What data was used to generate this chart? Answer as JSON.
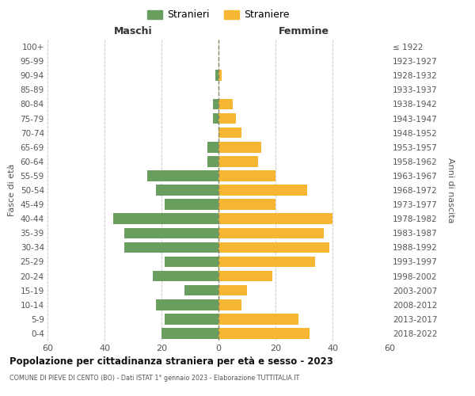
{
  "age_groups_bottom_to_top": [
    "0-4",
    "5-9",
    "10-14",
    "15-19",
    "20-24",
    "25-29",
    "30-34",
    "35-39",
    "40-44",
    "45-49",
    "50-54",
    "55-59",
    "60-64",
    "65-69",
    "70-74",
    "75-79",
    "80-84",
    "85-89",
    "90-94",
    "95-99",
    "100+"
  ],
  "birth_years_bottom_to_top": [
    "2018-2022",
    "2013-2017",
    "2008-2012",
    "2003-2007",
    "1998-2002",
    "1993-1997",
    "1988-1992",
    "1983-1987",
    "1978-1982",
    "1973-1977",
    "1968-1972",
    "1963-1967",
    "1958-1962",
    "1953-1957",
    "1948-1952",
    "1943-1947",
    "1938-1942",
    "1933-1937",
    "1928-1932",
    "1923-1927",
    "≤ 1922"
  ],
  "males_bottom_to_top": [
    20,
    19,
    22,
    12,
    23,
    19,
    33,
    33,
    37,
    19,
    22,
    25,
    4,
    4,
    0,
    2,
    2,
    0,
    1,
    0,
    0
  ],
  "females_bottom_to_top": [
    32,
    28,
    8,
    10,
    19,
    34,
    39,
    37,
    40,
    20,
    31,
    20,
    14,
    15,
    8,
    6,
    5,
    0,
    1,
    0,
    0
  ],
  "male_color": "#6a9e5e",
  "female_color": "#f5b731",
  "title": "Popolazione per cittadinanza straniera per età e sesso - 2023",
  "subtitle": "COMUNE DI PIEVE DI CENTO (BO) - Dati ISTAT 1° gennaio 2023 - Elaborazione TUTTITALIA.IT",
  "xlabel_left": "Maschi",
  "xlabel_right": "Femmine",
  "ylabel_left": "Fasce di età",
  "ylabel_right": "Anni di nascita",
  "legend_male": "Stranieri",
  "legend_female": "Straniere",
  "xlim": 60,
  "background_color": "#ffffff",
  "grid_color": "#cccccc",
  "bar_height": 0.75
}
